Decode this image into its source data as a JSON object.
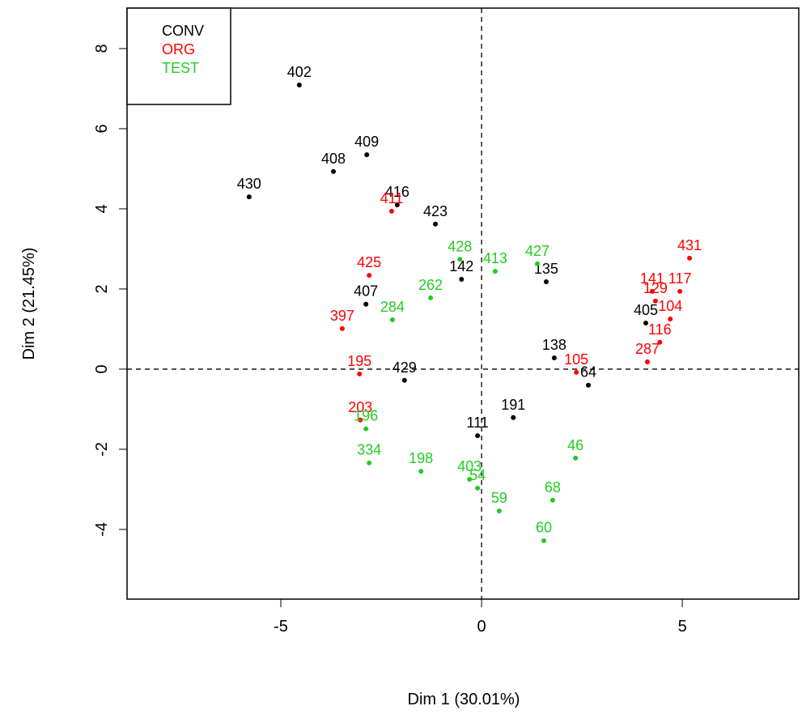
{
  "chart_data": {
    "type": "scatter",
    "xlabel": "Dim 1 (30.01%)",
    "ylabel": "Dim 2 (21.45%)",
    "xlim": [
      -8.83,
      7.9
    ],
    "ylim": [
      -5.74,
      9.01
    ],
    "xticks": [
      -5,
      0,
      5
    ],
    "yticks": [
      -4,
      -2,
      0,
      2,
      4,
      6,
      8
    ],
    "legend": "top-left",
    "series": [
      {
        "name": "CONV",
        "color": "#000000",
        "labels": [
          "402",
          "409",
          "408",
          "430",
          "416",
          "423",
          "407",
          "142",
          "135",
          "405",
          "138",
          "64",
          "429",
          "191",
          "111"
        ],
        "x": [
          -4.54,
          -2.86,
          -3.69,
          -5.79,
          -2.1,
          -1.15,
          -2.88,
          -0.5,
          1.61,
          4.09,
          1.81,
          2.66,
          -1.92,
          0.79,
          -0.1
        ],
        "y": [
          7.09,
          5.35,
          4.93,
          4.3,
          4.1,
          3.62,
          1.62,
          2.24,
          2.18,
          1.15,
          0.28,
          -0.4,
          -0.28,
          -1.21,
          -1.66
        ]
      },
      {
        "name": "ORG",
        "color": "#ff0000",
        "labels": [
          "431",
          "411",
          "425",
          "397",
          "141",
          "117",
          "129",
          "104",
          "116",
          "287",
          "195",
          "203",
          "105"
        ],
        "x": [
          5.18,
          -2.24,
          -2.8,
          -3.47,
          4.25,
          4.94,
          4.33,
          4.7,
          4.44,
          4.13,
          -3.04,
          -3.02,
          2.36
        ],
        "y": [
          2.77,
          3.94,
          2.34,
          1.01,
          1.94,
          1.94,
          1.7,
          1.25,
          0.67,
          0.18,
          -0.12,
          -1.27,
          -0.08
        ]
      },
      {
        "name": "TEST",
        "color": "#22cc22",
        "labels": [
          "428",
          "413",
          "427",
          "284",
          "262",
          "334",
          "198",
          "46",
          "68",
          "59",
          "60",
          "403",
          "54",
          "196"
        ],
        "x": [
          -0.54,
          0.34,
          1.39,
          -2.22,
          -1.27,
          -2.8,
          -1.51,
          2.34,
          1.77,
          0.44,
          1.55,
          -0.3,
          -0.1,
          -2.88
        ],
        "y": [
          2.74,
          2.44,
          2.63,
          1.23,
          1.78,
          -2.34,
          -2.55,
          -2.22,
          -3.27,
          -3.54,
          -4.28,
          -2.75,
          -2.97,
          -1.49
        ]
      }
    ]
  }
}
